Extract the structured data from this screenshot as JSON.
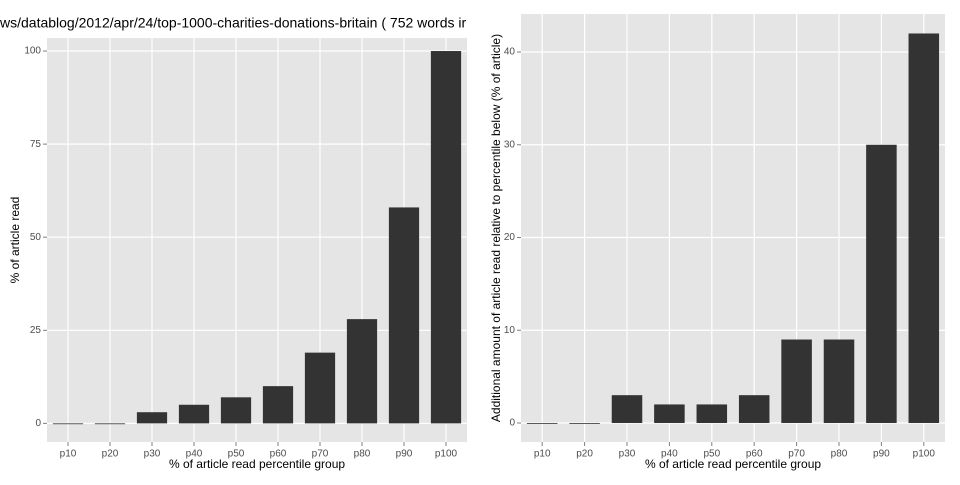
{
  "chart_data": [
    {
      "type": "bar",
      "title": "ws/datablog/2012/apr/24/top-1000-charities-donations-britain ( 752 words ir",
      "categories": [
        "p10",
        "p20",
        "p30",
        "p40",
        "p50",
        "p60",
        "p70",
        "p80",
        "p90",
        "p100"
      ],
      "values": [
        0,
        0,
        3,
        5,
        7,
        10,
        19,
        28,
        58,
        100
      ],
      "color": "#333333",
      "xlabel": "% of article read percentile group",
      "ylabel": "% of article read",
      "ylim": [
        -5,
        103.5
      ],
      "yticks": [
        0,
        25,
        50,
        75,
        100
      ],
      "grid": true
    },
    {
      "type": "bar",
      "categories": [
        "p10",
        "p20",
        "p30",
        "p40",
        "p50",
        "p60",
        "p70",
        "p80",
        "p90",
        "p100"
      ],
      "values": [
        0,
        0,
        3,
        2,
        2,
        3,
        9,
        9,
        30,
        42
      ],
      "color": "#333333",
      "xlabel": "% of article read percentile group",
      "ylabel": "Additional amount of article read relative to percentile below (% of article)",
      "ylim": [
        -2.05,
        44.1
      ],
      "yticks": [
        0,
        10,
        20,
        30,
        40
      ],
      "grid": true
    }
  ]
}
